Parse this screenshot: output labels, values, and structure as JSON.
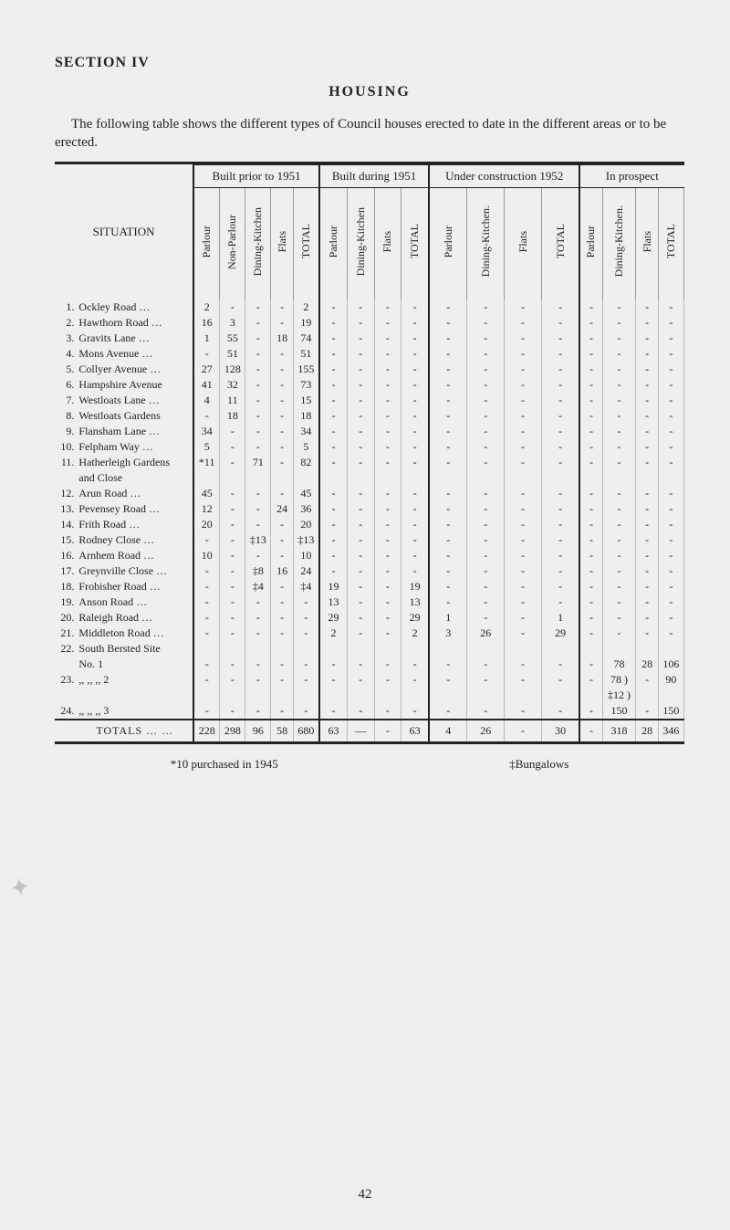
{
  "section_label": "SECTION IV",
  "title": "HOUSING",
  "intro": "The following table shows the different types of Council houses erected to date in the different areas or to be erected.",
  "footnote_left": "*10 purchased in 1945",
  "footnote_right": "‡Bungalows",
  "page_number": "42",
  "table": {
    "situation_label": "SITUATION",
    "groups": [
      {
        "label": "Built prior to 1951",
        "cols": [
          "Parlour",
          "Non-Parlour",
          "Dining-Kitchen",
          "Flats",
          "TOTAL"
        ]
      },
      {
        "label": "Built during 1951",
        "cols": [
          "Parlour",
          "Dining-Kitchen",
          "Flats",
          "TOTAL"
        ]
      },
      {
        "label": "Under con­struction 1952",
        "cols": [
          "Parlour",
          "Dining-Kitchen.",
          "Flats",
          "TOTAL"
        ]
      },
      {
        "label": "In prospect",
        "cols": [
          "Parlour",
          "Dining-Kitchen.",
          "Flats",
          "TOTAL"
        ]
      }
    ],
    "rows": [
      {
        "idx": "1.",
        "name": "Ockley Road   …",
        "g1": [
          "2",
          "-",
          "-",
          "-",
          "2"
        ],
        "g2": [
          "-",
          "-",
          "-",
          "-"
        ],
        "g3": [
          "-",
          "-",
          "-",
          "-"
        ],
        "g4": [
          "-",
          "-",
          "-",
          "-"
        ]
      },
      {
        "idx": "2.",
        "name": "Hawthorn Road …",
        "g1": [
          "16",
          "3",
          "-",
          "-",
          "19"
        ],
        "g2": [
          "-",
          "-",
          "-",
          "-"
        ],
        "g3": [
          "-",
          "-",
          "-",
          "-"
        ],
        "g4": [
          "-",
          "-",
          "-",
          "-"
        ]
      },
      {
        "idx": "3.",
        "name": "Gravits Lane   …",
        "g1": [
          "1",
          "55",
          "-",
          "18",
          "74"
        ],
        "g2": [
          "-",
          "-",
          "-",
          "-"
        ],
        "g3": [
          "-",
          "-",
          "-",
          "-"
        ],
        "g4": [
          "-",
          "-",
          "-",
          "-"
        ]
      },
      {
        "idx": "4.",
        "name": "Mons Avenue   …",
        "g1": [
          "-",
          "51",
          "-",
          "-",
          "51"
        ],
        "g2": [
          "-",
          "-",
          "-",
          "-"
        ],
        "g3": [
          "-",
          "-",
          "-",
          "-"
        ],
        "g4": [
          "-",
          "-",
          "-",
          "-"
        ]
      },
      {
        "idx": "5.",
        "name": "Collyer Avenue  …",
        "g1": [
          "27",
          "128",
          "-",
          "-",
          "155"
        ],
        "g2": [
          "-",
          "-",
          "-",
          "-"
        ],
        "g3": [
          "-",
          "-",
          "-",
          "-"
        ],
        "g4": [
          "-",
          "-",
          "-",
          "-"
        ]
      },
      {
        "idx": "6.",
        "name": "Hampshire Avenue",
        "g1": [
          "41",
          "32",
          "-",
          "-",
          "73"
        ],
        "g2": [
          "-",
          "-",
          "-",
          "-"
        ],
        "g3": [
          "-",
          "-",
          "-",
          "-"
        ],
        "g4": [
          "-",
          "-",
          "-",
          "-"
        ]
      },
      {
        "idx": "7.",
        "name": "Westloats Lane  …",
        "g1": [
          "4",
          "11",
          "-",
          "-",
          "15"
        ],
        "g2": [
          "-",
          "-",
          "-",
          "-"
        ],
        "g3": [
          "-",
          "-",
          "-",
          "-"
        ],
        "g4": [
          "-",
          "-",
          "-",
          "-"
        ]
      },
      {
        "idx": "8.",
        "name": "Westloats Gardens",
        "g1": [
          "-",
          "18",
          "-",
          "-",
          "18"
        ],
        "g2": [
          "-",
          "-",
          "-",
          "-"
        ],
        "g3": [
          "-",
          "-",
          "-",
          "-"
        ],
        "g4": [
          "-",
          "-",
          "-",
          "-"
        ]
      },
      {
        "idx": "9.",
        "name": "Flansham Lane  …",
        "g1": [
          "34",
          "-",
          "-",
          "-",
          "34"
        ],
        "g2": [
          "-",
          "-",
          "-",
          "-"
        ],
        "g3": [
          "-",
          "-",
          "-",
          "-"
        ],
        "g4": [
          "-",
          "-",
          "-",
          "-"
        ]
      },
      {
        "idx": "10.",
        "name": "Felpham Way   …",
        "g1": [
          "5",
          "-",
          "-",
          "-",
          "5"
        ],
        "g2": [
          "-",
          "-",
          "-",
          "-"
        ],
        "g3": [
          "-",
          "-",
          "-",
          "-"
        ],
        "g4": [
          "-",
          "-",
          "-",
          "-"
        ]
      },
      {
        "idx": "11.",
        "name": "Hatherleigh Gardens",
        "g1": [
          "*11",
          "-",
          "71",
          "-",
          "82"
        ],
        "g2": [
          "-",
          "-",
          "-",
          "-"
        ],
        "g3": [
          "-",
          "-",
          "-",
          "-"
        ],
        "g4": [
          "-",
          "-",
          "-",
          "-"
        ]
      },
      {
        "idx": "",
        "name": "   and Close",
        "g1": [
          "",
          "",
          "",
          "",
          ""
        ],
        "g2": [
          "",
          "",
          "",
          ""
        ],
        "g3": [
          "",
          "",
          "",
          ""
        ],
        "g4": [
          "",
          "",
          "",
          ""
        ]
      },
      {
        "idx": "12.",
        "name": "Arun Road    …",
        "g1": [
          "45",
          "-",
          "-",
          "-",
          "45"
        ],
        "g2": [
          "-",
          "-",
          "-",
          "-"
        ],
        "g3": [
          "-",
          "-",
          "-",
          "-"
        ],
        "g4": [
          "-",
          "-",
          "-",
          "-"
        ]
      },
      {
        "idx": "13.",
        "name": "Pevensey Road  …",
        "g1": [
          "12",
          "-",
          "-",
          "24",
          "36"
        ],
        "g2": [
          "-",
          "-",
          "-",
          "-"
        ],
        "g3": [
          "-",
          "-",
          "-",
          "-"
        ],
        "g4": [
          "-",
          "-",
          "-",
          "-"
        ]
      },
      {
        "idx": "14.",
        "name": "Frith Road    …",
        "g1": [
          "20",
          "-",
          "-",
          "-",
          "20"
        ],
        "g2": [
          "-",
          "-",
          "-",
          "-"
        ],
        "g3": [
          "-",
          "-",
          "-",
          "-"
        ],
        "g4": [
          "-",
          "-",
          "-",
          "-"
        ]
      },
      {
        "idx": "15.",
        "name": "Rodney Close   …",
        "g1": [
          "-",
          "-",
          "‡13",
          "-",
          "‡13"
        ],
        "g2": [
          "-",
          "-",
          "-",
          "-"
        ],
        "g3": [
          "-",
          "-",
          "-",
          "-"
        ],
        "g4": [
          "-",
          "-",
          "-",
          "-"
        ]
      },
      {
        "idx": "16.",
        "name": "Arnhem Road   …",
        "g1": [
          "10",
          "-",
          "-",
          "-",
          "10"
        ],
        "g2": [
          "-",
          "-",
          "-",
          "-"
        ],
        "g3": [
          "-",
          "-",
          "-",
          "-"
        ],
        "g4": [
          "-",
          "-",
          "-",
          "-"
        ]
      },
      {
        "idx": "17.",
        "name": "Greynville Close …",
        "g1": [
          "-",
          "-",
          "‡8",
          "16",
          "24"
        ],
        "g2": [
          "-",
          "-",
          "-",
          "-"
        ],
        "g3": [
          "-",
          "-",
          "-",
          "-"
        ],
        "g4": [
          "-",
          "-",
          "-",
          "-"
        ]
      },
      {
        "idx": "18.",
        "name": "Frobisher Road  …",
        "g1": [
          "-",
          "-",
          "‡4",
          "-",
          "‡4"
        ],
        "g2": [
          "19",
          "-",
          "-",
          "19"
        ],
        "g3": [
          "-",
          "-",
          "-",
          "-"
        ],
        "g4": [
          "-",
          "-",
          "-",
          "-"
        ]
      },
      {
        "idx": "19.",
        "name": "Anson Road    …",
        "g1": [
          "-",
          "-",
          "-",
          "-",
          "-"
        ],
        "g2": [
          "13",
          "-",
          "-",
          "13"
        ],
        "g3": [
          "-",
          "-",
          "-",
          "-"
        ],
        "g4": [
          "-",
          "-",
          "-",
          "-"
        ]
      },
      {
        "idx": "20.",
        "name": "Raleigh Road   …",
        "g1": [
          "-",
          "-",
          "-",
          "-",
          "-"
        ],
        "g2": [
          "29",
          "-",
          "-",
          "29"
        ],
        "g3": [
          "1",
          "-",
          "-",
          "1"
        ],
        "g4": [
          "-",
          "-",
          "-",
          "-"
        ]
      },
      {
        "idx": "21.",
        "name": "Middleton Road  …",
        "g1": [
          "-",
          "-",
          "-",
          "-",
          "-"
        ],
        "g2": [
          "2",
          "-",
          "-",
          "2"
        ],
        "g3": [
          "3",
          "26",
          "-",
          "29"
        ],
        "g4": [
          "-",
          "-",
          "-",
          "-"
        ]
      },
      {
        "idx": "22.",
        "name": "South Bersted Site",
        "g1": [
          "",
          "",
          "",
          "",
          ""
        ],
        "g2": [
          "",
          "",
          "",
          ""
        ],
        "g3": [
          "",
          "",
          "",
          ""
        ],
        "g4": [
          "",
          "",
          "",
          ""
        ]
      },
      {
        "idx": "",
        "name": "        No. 1",
        "g1": [
          "-",
          "-",
          "-",
          "-",
          "-"
        ],
        "g2": [
          "-",
          "-",
          "-",
          "-"
        ],
        "g3": [
          "-",
          "-",
          "-",
          "-"
        ],
        "g4": [
          "-",
          "78",
          "28",
          "106"
        ]
      },
      {
        "idx": "23.",
        "name": "  ,,    ,,    ,,   2",
        "g1": [
          "-",
          "-",
          "-",
          "-",
          "-"
        ],
        "g2": [
          "-",
          "-",
          "-",
          "-"
        ],
        "g3": [
          "-",
          "-",
          "-",
          "-"
        ],
        "g4": [
          "-",
          "78 )",
          "-",
          "90"
        ]
      },
      {
        "idx": "",
        "name": "",
        "g1": [
          "",
          "",
          "",
          "",
          ""
        ],
        "g2": [
          "",
          "",
          "",
          ""
        ],
        "g3": [
          "",
          "",
          "",
          ""
        ],
        "g4": [
          "",
          "‡12 )",
          "",
          ""
        ]
      },
      {
        "idx": "24.",
        "name": "  ,,    ,,    ,,   3",
        "g1": [
          "-",
          "-",
          "-",
          "-",
          "-"
        ],
        "g2": [
          "-",
          "-",
          "-",
          "-"
        ],
        "g3": [
          "-",
          "-",
          "-",
          "-"
        ],
        "g4": [
          "-",
          "150",
          "-",
          "150"
        ]
      }
    ],
    "totals": {
      "label": "TOTALS …   …",
      "g1": [
        "228",
        "298",
        "96",
        "58",
        "680"
      ],
      "g2": [
        "63",
        "—",
        "-",
        "63"
      ],
      "g3": [
        "4",
        "26",
        "-",
        "30"
      ],
      "g4": [
        "-",
        "318",
        "28",
        "346"
      ]
    }
  }
}
